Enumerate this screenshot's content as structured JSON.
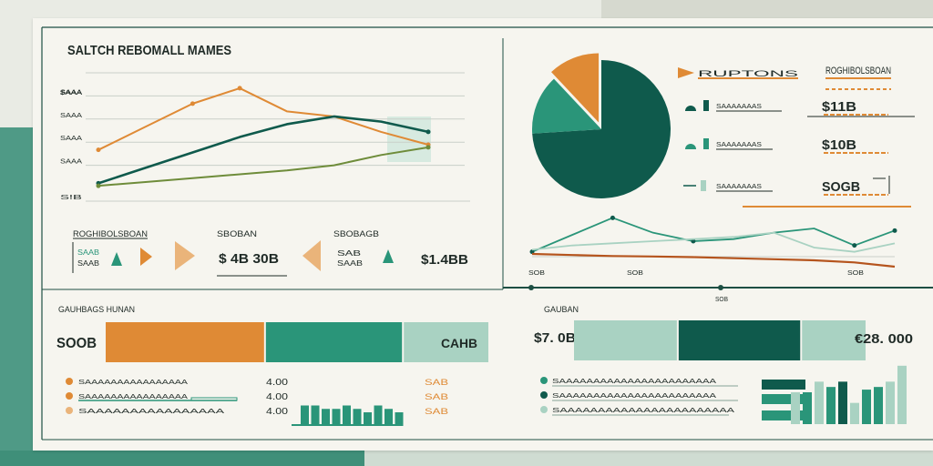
{
  "title": "SALTCH REBOMALL MAMES",
  "colors": {
    "dark_teal": "#0f5a4c",
    "teal": "#2a9579",
    "light_teal": "#a9d2c2",
    "orange": "#df8a35",
    "light_orange": "#eab47a",
    "olive": "#6e8c3a",
    "rust": "#b5541d",
    "text": "#1f2a26"
  },
  "chart_data": [
    {
      "type": "line",
      "title": "SALTCH REBOMALL MAMES",
      "x": [
        0,
        1,
        2,
        3,
        4,
        5,
        6,
        7
      ],
      "ytick_labels": [
        "$AAA",
        "SAAA",
        "SAAA",
        "SAAA",
        "SAAA",
        "S!B"
      ],
      "series": [
        {
          "name": "",
          "values": [
            1.5,
            2.4,
            3.3,
            3.9,
            3.0,
            2.8,
            2.2,
            1.7
          ]
        },
        {
          "name": "",
          "values": [
            0.2,
            0.8,
            1.4,
            2.0,
            2.5,
            2.8,
            2.6,
            2.2
          ]
        },
        {
          "name": "",
          "values": [
            0.1,
            0.25,
            0.4,
            0.55,
            0.7,
            0.9,
            1.3,
            1.6
          ]
        }
      ],
      "ylim": [
        0,
        4.5
      ],
      "grid": true
    },
    {
      "type": "pie",
      "slices": [
        {
          "name": "",
          "value": 74
        },
        {
          "name": "",
          "value": 14
        },
        {
          "name": "",
          "value": 12
        }
      ]
    },
    {
      "type": "line",
      "x_labels": [
        "SOB",
        "SOB",
        "SOB"
      ],
      "series": [
        {
          "name": "",
          "values": [
            1.0,
            1.8,
            2.6,
            1.9,
            1.5,
            1.6,
            1.9,
            2.1,
            1.3,
            2.0
          ]
        },
        {
          "name": "",
          "values": [
            1.1,
            1.3,
            1.4,
            1.5,
            1.6,
            1.7,
            1.9,
            1.2,
            1.0,
            1.4
          ]
        },
        {
          "name": "",
          "values": [
            0.9,
            0.85,
            0.8,
            0.78,
            0.75,
            0.7,
            0.65,
            0.6,
            0.5,
            0.3
          ]
        }
      ],
      "ylim": [
        0,
        3
      ]
    },
    {
      "type": "bar",
      "orientation": "horizontal-stacked",
      "label": "SOOB",
      "segments": [
        {
          "name": "",
          "value": 36
        },
        {
          "name": "",
          "value": 31
        },
        {
          "name": "",
          "value": 19
        }
      ],
      "end_label": "CAHB"
    },
    {
      "type": "bar",
      "orientation": "horizontal-stacked",
      "label": "$7. 0B",
      "segments": [
        {
          "name": "",
          "value": 28
        },
        {
          "name": "",
          "value": 33
        },
        {
          "name": "",
          "value": 17
        }
      ],
      "end_label": "€28. 000"
    },
    {
      "type": "bar",
      "label": "bottom-left mini bars",
      "values": [
        6,
        6,
        5,
        5,
        6,
        5,
        4,
        6,
        5,
        4
      ],
      "ylim": [
        0,
        8
      ]
    },
    {
      "type": "bar",
      "label": "bottom-right mini bars",
      "values": [
        12,
        12,
        16,
        14,
        16,
        8,
        13,
        14,
        16,
        22
      ],
      "ylim": [
        0,
        24
      ]
    }
  ],
  "kpis": {
    "header_left": "ROGHIBOLSBOAN",
    "header_mid": "SBOBAN",
    "header_right": "SBOBAGB",
    "val_left_top": "SAAB",
    "val_left_bot": "SAAB",
    "val_mid": "$ 4B 30B",
    "val_mid_small_top": "SAB",
    "val_mid_small_bot": "SAAB",
    "val_right": "$1.4BB"
  },
  "right_panel": {
    "header": "RUPTONS",
    "rows": [
      {
        "label": "SAAAAAAAS",
        "value": "$11B"
      },
      {
        "label": "SAAAAAAAS",
        "value": "$10B"
      },
      {
        "label": "SAAAAAAAS",
        "value": "SOGB"
      }
    ]
  },
  "bottom_left": {
    "header": "GAUHBAGS HUNAN",
    "rows": [
      {
        "label": "SAAAAAAAAAAAAAAAA",
        "value": "4.00"
      },
      {
        "label": "SAAAAAAAAAAAAAAAA",
        "value": "4.00"
      },
      {
        "label": "SAAAAAAAAAAAAAAAA",
        "value": "4.00"
      }
    ],
    "right_values": [
      "SAB",
      "SAB",
      "SAB"
    ]
  },
  "bottom_right": {
    "header": "GAUBAN",
    "rows": [
      {
        "label": "SAAAAAAAAAAAAAAAAAAAAAAA"
      },
      {
        "label": "SAAAAAAAAAAAAAAAAAAAAAAA"
      },
      {
        "label": "SAAAAAAAAAAAAAAAAAAAAAAA"
      }
    ]
  },
  "mid_right_label": "SOB"
}
